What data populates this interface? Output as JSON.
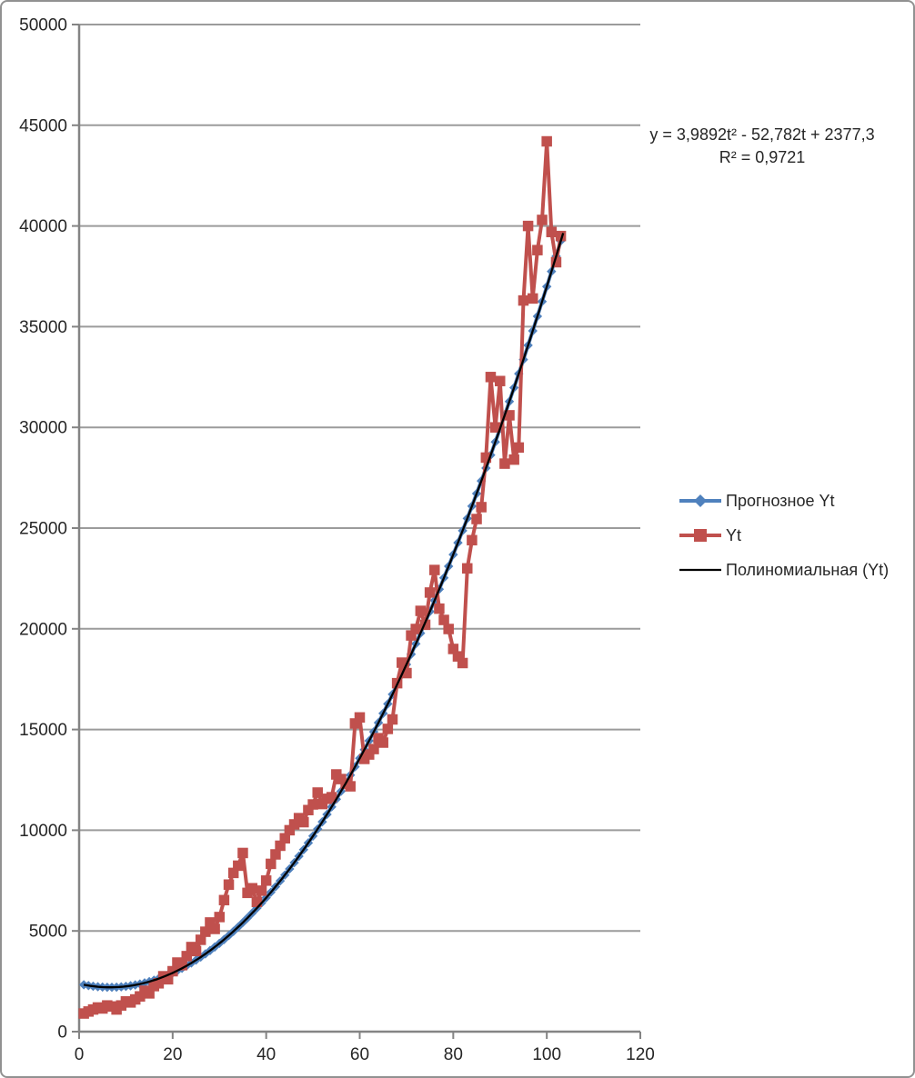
{
  "chart_data": {
    "type": "line",
    "title": "",
    "x_axis": {
      "label": "",
      "min": 0,
      "max": 120,
      "tick_step": 20,
      "ticks": [
        0,
        20,
        40,
        60,
        80,
        100,
        120
      ]
    },
    "y_axis": {
      "label": "",
      "min": 0,
      "max": 50000,
      "tick_step": 5000,
      "ticks": [
        0,
        5000,
        10000,
        15000,
        20000,
        25000,
        30000,
        35000,
        40000,
        45000,
        50000
      ]
    },
    "grid": true,
    "legend_position": "right",
    "annotation": {
      "line1": "y = 3,9892t² - 52,782t + 2377,3",
      "line2": "R² = 0,9721"
    },
    "trendline": {
      "name": "Полиномиальная (Yt)",
      "type": "polynomial",
      "coefficients": {
        "a": 3.9892,
        "b": -52.782,
        "c": 2377.3
      },
      "r_squared": "0,9721",
      "color": "#000000",
      "t_start": 1,
      "t_end": 103.5
    },
    "series": [
      {
        "name": "Прогнозное Yt",
        "color": "#4F81BD",
        "marker": "diamond",
        "t_start": 1,
        "values": [
          2328,
          2288,
          2255,
          2230,
          2213,
          2204,
          2203,
          2210,
          2225,
          2248,
          2279,
          2318,
          2365,
          2420,
          2483,
          2554,
          2633,
          2720,
          2815,
          2917,
          3028,
          3147,
          3274,
          3408,
          3551,
          3702,
          3860,
          4027,
          4202,
          4384,
          4575,
          4773,
          4980,
          5194,
          5417,
          5647,
          5886,
          6132,
          6386,
          6649,
          6919,
          7197,
          7484,
          7778,
          8080,
          8390,
          8709,
          9035,
          9369,
          9711,
          10061,
          10419,
          10786,
          11160,
          11542,
          11932,
          12330,
          12736,
          13150,
          13572,
          14001,
          14439,
          14885,
          15339,
          15801,
          16271,
          16748,
          17234,
          17728,
          18230,
          18739,
          19257,
          19783,
          20316,
          20858,
          21407,
          21965,
          22531,
          23104,
          23686,
          24275,
          24873,
          25478,
          26091,
          26713,
          27342,
          27980,
          28625,
          29278,
          29939,
          30609,
          31286,
          31971,
          32664,
          33366,
          34075,
          34792,
          35517,
          36250,
          36991,
          37740,
          38497,
          39262
        ]
      },
      {
        "name": "Yt",
        "color": "#C0504D",
        "marker": "square",
        "t_start": 1,
        "values": [
          900,
          1000,
          1100,
          1200,
          1150,
          1300,
          1250,
          1100,
          1300,
          1500,
          1450,
          1600,
          1750,
          2030,
          1900,
          2260,
          2400,
          2750,
          2600,
          3000,
          3430,
          3300,
          3750,
          4200,
          4000,
          4560,
          4960,
          5420,
          5100,
          5690,
          6530,
          7300,
          7880,
          8240,
          8870,
          6890,
          7120,
          6440,
          7000,
          7500,
          8330,
          8800,
          9230,
          9600,
          10000,
          10290,
          10600,
          10400,
          11000,
          11280,
          11870,
          11300,
          11560,
          11640,
          12770,
          12540,
          12310,
          12180,
          15300,
          15600,
          13540,
          13760,
          14030,
          14570,
          14350,
          15030,
          15500,
          17300,
          18320,
          17800,
          19670,
          19990,
          20890,
          20200,
          21800,
          22920,
          21000,
          20440,
          19990,
          19000,
          18630,
          18300,
          23000,
          24400,
          25450,
          26040,
          28500,
          32500,
          30000,
          32300,
          28200,
          30600,
          28400,
          29000,
          36300,
          40000,
          36400,
          38800,
          40300,
          44200,
          39700,
          38200,
          39500
        ]
      }
    ],
    "style": {
      "plot_background": "#FFFFFF",
      "grid_color": "#9B9B9B",
      "axis_color": "#848484",
      "text_color": "#262626",
      "frame_border_color": "#919191"
    }
  }
}
